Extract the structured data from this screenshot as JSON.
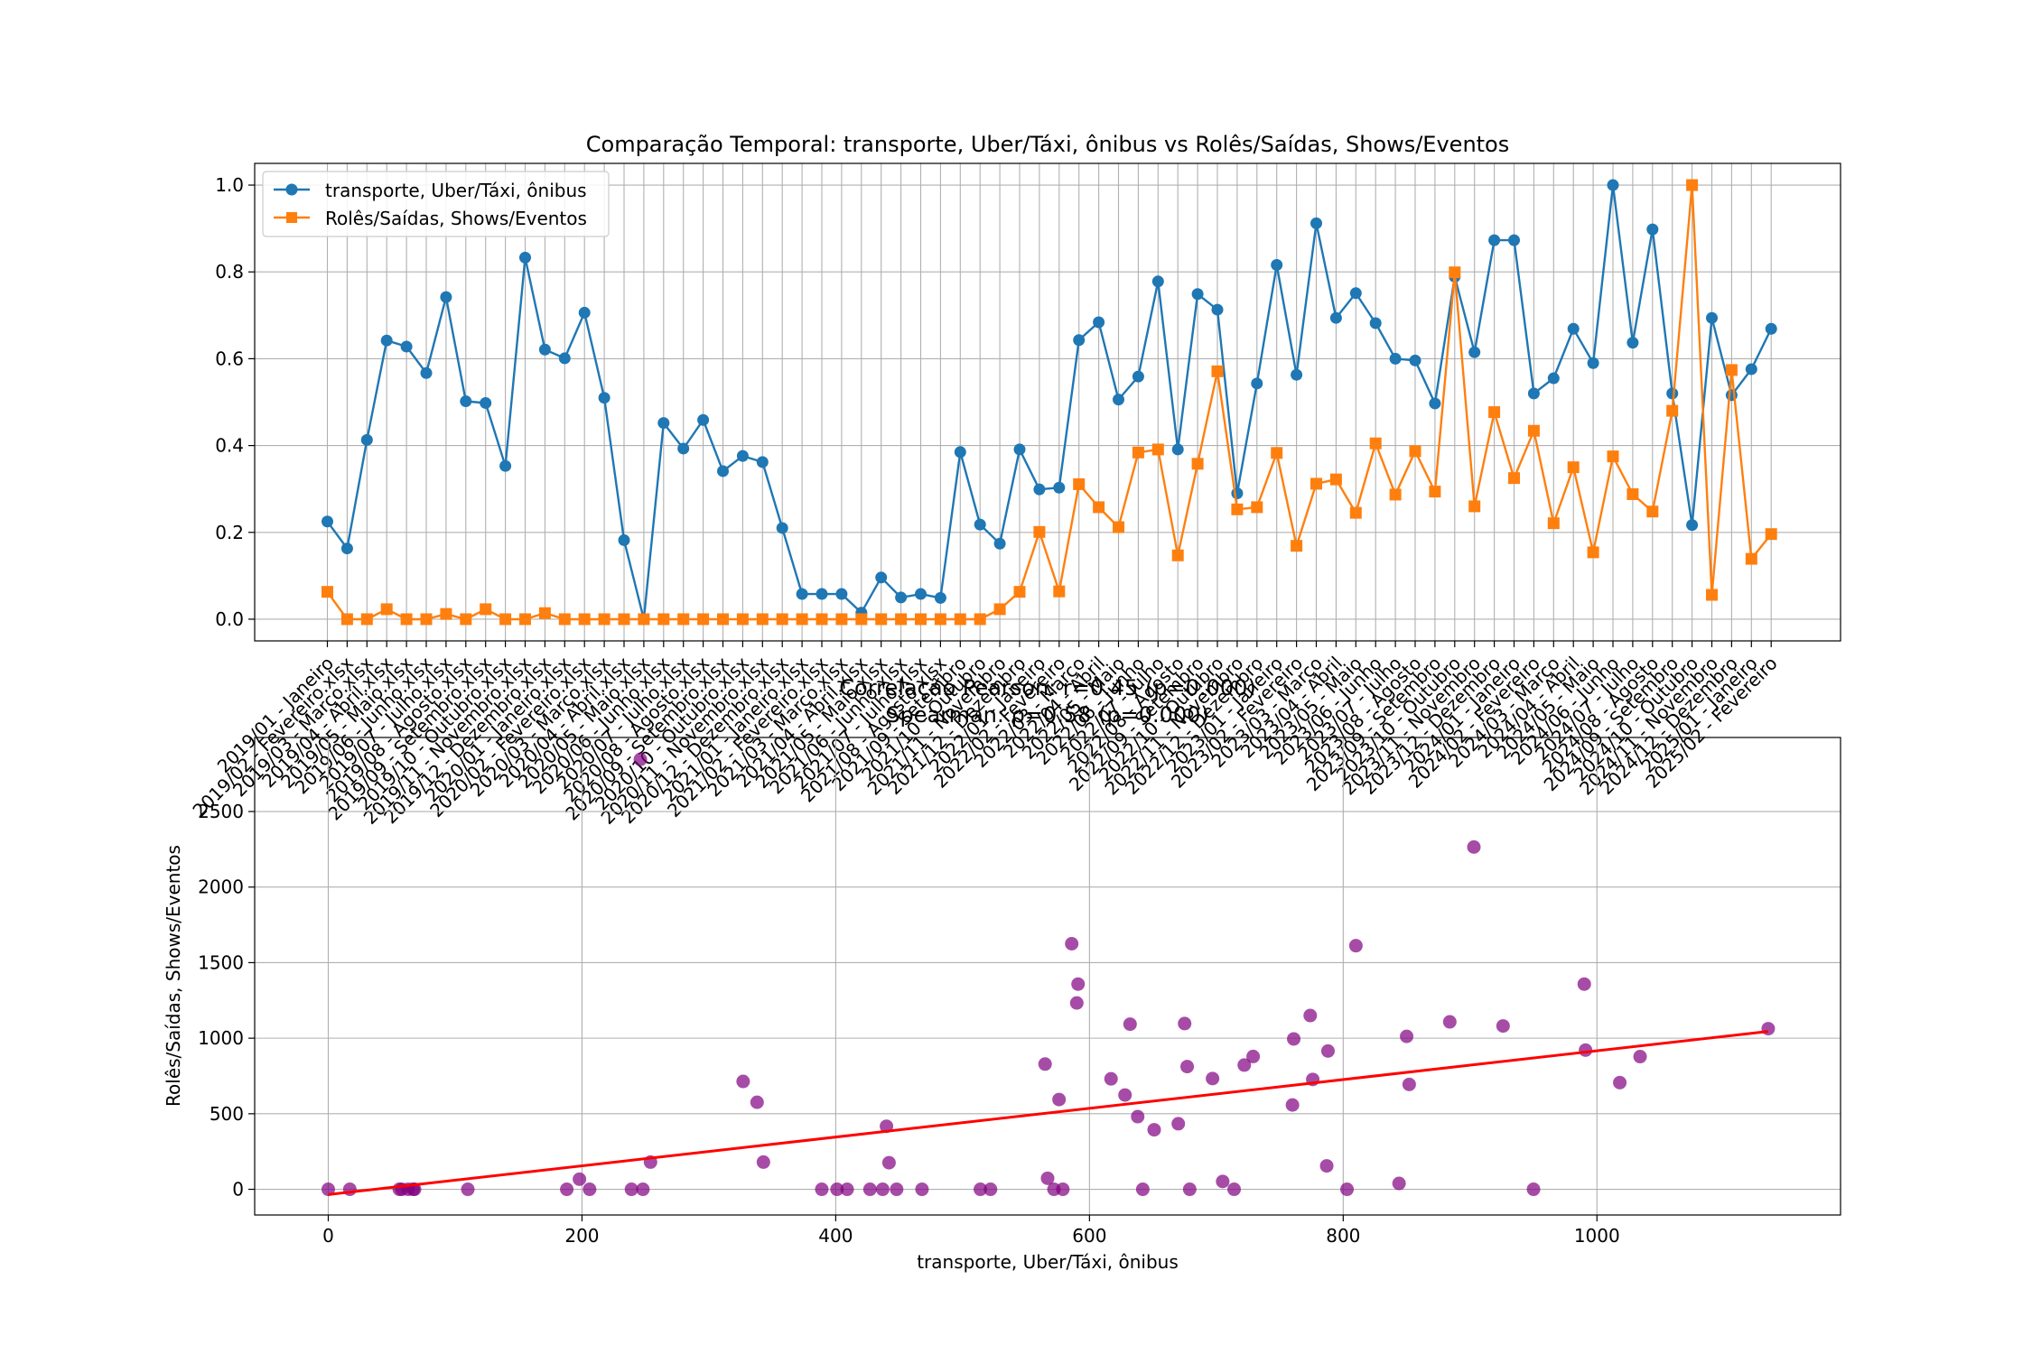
{
  "chart_data": [
    {
      "type": "line",
      "title": "Comparação Temporal: transporte, Uber/Táxi, ônibus vs Rolês/Saídas, Shows/Eventos",
      "xlabel": "",
      "ylabel": "",
      "ylim": [
        -0.05,
        1.05
      ],
      "yticks": [
        "0.0",
        "0.2",
        "0.4",
        "0.6",
        "0.8",
        "1.0"
      ],
      "grid": true,
      "legend_position": "upper-left",
      "categories": [
        "2019/01 - Janeiro",
        "2019/02 - Fevereiro.xlsx",
        "2019/03 - Março.xlsx",
        "2019/04 - Abril.xlsx",
        "2019/05 - Maio.xlsx",
        "2019/06 - Junho.xlsx",
        "2019/07 - Julho.xlsx",
        "2019/08 - Agosto.xlsx",
        "2019/09 - Setembro.xlsx",
        "2019/10 - Outubro.xlsx",
        "2019/11 - Novembro.xlsx",
        "2019/12 - Dezembro.xlsx",
        "2020/01 - Janeiro.xlsx",
        "2020/02 - Fevereiro.xlsx",
        "2020/03 - Março.xlsx",
        "2020/04 - Abril.xlsx",
        "2020/05 - Maio.xlsx",
        "2020/06 - Junho.xlsx",
        "2020/07 - Julho.xlsx",
        "2020/08 - Agosto.xlsx",
        "2020/09 - Setembro.xlsx",
        "2020/10 - Outubro.xlsx",
        "2020/11 - Novembro.xlsx",
        "2020/12 - Dezembro.xlsx",
        "2021/01 - Janeiro.xlsx",
        "2021/02 - Fevereiro.xlsx",
        "2021/03 - Março.xlsx",
        "2021/04 - Abril.xlsx",
        "2021/05 - Maio.xlsx",
        "2021/06 - Junho.xlsx",
        "2021/07 - Julho.xlsx",
        "2021/08 - Agosto.xlsx",
        "2021/09 - Setembro",
        "2021/10 - Outubro",
        "2021/11 - Novembro",
        "2021/12 - Dezembro",
        "2022/01 - Janeiro",
        "2022/02 - Fevereiro",
        "2022/03 - Março",
        "2022/04 - Abril",
        "2022/05 - Maio",
        "2022/06 - Junho",
        "2022/07 - Julho",
        "2022/08 - Agosto",
        "2022/09 - Setembro",
        "2022/10 - Outubro",
        "2022/11 - Novembro",
        "2022/12 - Dezembro",
        "2023/01 - Janeiro",
        "2023/02 - Fevereiro",
        "2023/03 - Março",
        "2023/04 - Abril",
        "2023/05 - Maio",
        "2023/06 - Junho",
        "2023/07 - Julho",
        "2023/08 - Agosto",
        "2023/09 - Setembro",
        "2023/10 - Outubro",
        "2023/11 - Novembro",
        "2023/12 - Dezembro",
        "2024/01 - Janeiro",
        "2024/02 - Fevereiro",
        "2024/03 - Março",
        "2024/04 - Abril",
        "2024/05 - Maio",
        "2024/06 - Junho",
        "2024/07 - Julho",
        "2024/08 - Agosto",
        "2024/09 - Setembro",
        "2024/10 - Outubro",
        "2024/11 - Novembro",
        "2024/12 - Dezembro",
        "2025/01 - Janeiro",
        "2025/02 - Fevereiro"
      ],
      "series": [
        {
          "name": "transporte, Uber/Táxi, ônibus",
          "color": "#1f77b4",
          "marker": "circle",
          "values": [
            0.225,
            0.163,
            0.413,
            0.642,
            0.628,
            0.567,
            0.742,
            0.502,
            0.498,
            0.353,
            0.833,
            0.621,
            0.601,
            0.706,
            0.51,
            0.182,
            0.0,
            0.452,
            0.393,
            0.459,
            0.341,
            0.376,
            0.362,
            0.21,
            0.058,
            0.058,
            0.058,
            0.015,
            0.096,
            0.05,
            0.058,
            0.049,
            0.385,
            0.218,
            0.174,
            0.391,
            0.299,
            0.303,
            0.643,
            0.684,
            0.506,
            0.559,
            0.778,
            0.391,
            0.749,
            0.713,
            0.29,
            0.543,
            0.816,
            0.563,
            0.912,
            0.694,
            0.751,
            0.682,
            0.6,
            0.596,
            0.497,
            0.789,
            0.615,
            0.873,
            0.873,
            0.52,
            0.555,
            0.669,
            0.59,
            1.0,
            0.637,
            0.898,
            0.52,
            0.217,
            0.694,
            0.516,
            0.576,
            0.669
          ]
        },
        {
          "name": "Rolês/Saídas, Shows/Eventos",
          "color": "#ff7f0e",
          "marker": "square",
          "values": [
            0.063,
            0.0,
            0.0,
            0.023,
            0.0,
            0.0,
            0.012,
            0.0,
            0.023,
            0.0,
            0.0,
            0.014,
            0.0,
            0.0,
            0.0,
            0.0,
            0.0,
            0.0,
            0.0,
            0.0,
            0.0,
            0.0,
            0.0,
            0.0,
            0.0,
            0.0,
            0.0,
            0.0,
            0.0,
            0.0,
            0.0,
            0.0,
            0.0,
            0.0,
            0.023,
            0.063,
            0.201,
            0.064,
            0.311,
            0.258,
            0.212,
            0.384,
            0.391,
            0.147,
            0.358,
            0.571,
            0.253,
            0.258,
            0.383,
            0.169,
            0.312,
            0.322,
            0.245,
            0.405,
            0.287,
            0.387,
            0.294,
            0.799,
            0.26,
            0.477,
            0.325,
            0.434,
            0.221,
            0.35,
            0.154,
            0.375,
            0.288,
            0.248,
            0.48,
            1.0,
            0.056,
            0.574,
            0.139,
            0.196
          ]
        }
      ]
    },
    {
      "type": "scatter",
      "title": "Correlação Pearson: r=0.45 (p=0.000)\nSpearman: ρ=0.58 (p=0.000)",
      "xlabel": "transporte, Uber/Táxi, ônibus",
      "ylabel": "Rolês/Saídas, Shows/Eventos",
      "xlim": [
        -58,
        1192
      ],
      "ylim": [
        -170,
        2990
      ],
      "xticks": [
        0,
        200,
        400,
        600,
        800,
        1000
      ],
      "yticks": [
        0,
        500,
        1000,
        1500,
        2000,
        2500
      ],
      "grid": true,
      "point_color": "#800080",
      "trend_color": "#ff0000",
      "trend_line": {
        "x": [
          0,
          1135
        ],
        "y": [
          -35,
          1045
        ]
      },
      "x": [
        0,
        17,
        56,
        58,
        63,
        67,
        68,
        110,
        188,
        198,
        206,
        239,
        246,
        248,
        254,
        327,
        338,
        343,
        389,
        401,
        409,
        427,
        437,
        440,
        442,
        448,
        468,
        514,
        522,
        565,
        567,
        572,
        576,
        579,
        586,
        590,
        591,
        617,
        628,
        632,
        638,
        642,
        651,
        670,
        675,
        677,
        679,
        697,
        705,
        714,
        722,
        729,
        760,
        761,
        774,
        776,
        787,
        788,
        803,
        810,
        844,
        850,
        852,
        884,
        903,
        926,
        950,
        990,
        991,
        1018,
        1034,
        1135
      ],
      "y": [
        0,
        0,
        0,
        0,
        0,
        0,
        0,
        0,
        0,
        67,
        0,
        0,
        2845,
        0,
        180,
        714,
        576,
        180,
        0,
        0,
        0,
        0,
        0,
        417,
        176,
        0,
        0,
        0,
        0,
        829,
        73,
        0,
        594,
        0,
        1625,
        1233,
        1358,
        731,
        624,
        1093,
        481,
        0,
        394,
        434,
        1097,
        812,
        0,
        733,
        52,
        0,
        822,
        879,
        558,
        995,
        1150,
        727,
        155,
        915,
        0,
        1612,
        39,
        1012,
        694,
        1108,
        2265,
        1081,
        0,
        1358,
        921,
        706,
        878,
        1063
      ]
    }
  ]
}
